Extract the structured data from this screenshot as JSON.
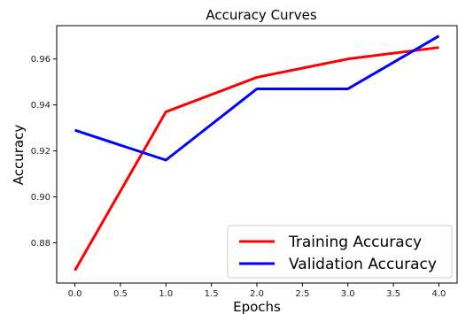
{
  "chart_data": {
    "type": "line",
    "title": "Accuracy Curves",
    "xlabel": "Epochs",
    "ylabel": "Accuracy",
    "x": [
      0,
      1,
      2,
      3,
      4
    ],
    "xlim": [
      -0.2,
      4.2
    ],
    "ylim": [
      0.8625,
      0.9745
    ],
    "x_ticks": [
      "0.0",
      "0.5",
      "1.0",
      "1.5",
      "2.0",
      "2.5",
      "3.0",
      "3.5",
      "4.0"
    ],
    "y_ticks": [
      "0.88",
      "0.90",
      "0.92",
      "0.94",
      "0.96"
    ],
    "grid": false,
    "legend_position": "lower-right",
    "series": [
      {
        "name": "Training Accuracy",
        "color": "#ff0000",
        "values": [
          0.868,
          0.937,
          0.952,
          0.96,
          0.965
        ]
      },
      {
        "name": "Validation Accuracy",
        "color": "#0000ff",
        "values": [
          0.929,
          0.916,
          0.947,
          0.947,
          0.97
        ]
      }
    ]
  }
}
